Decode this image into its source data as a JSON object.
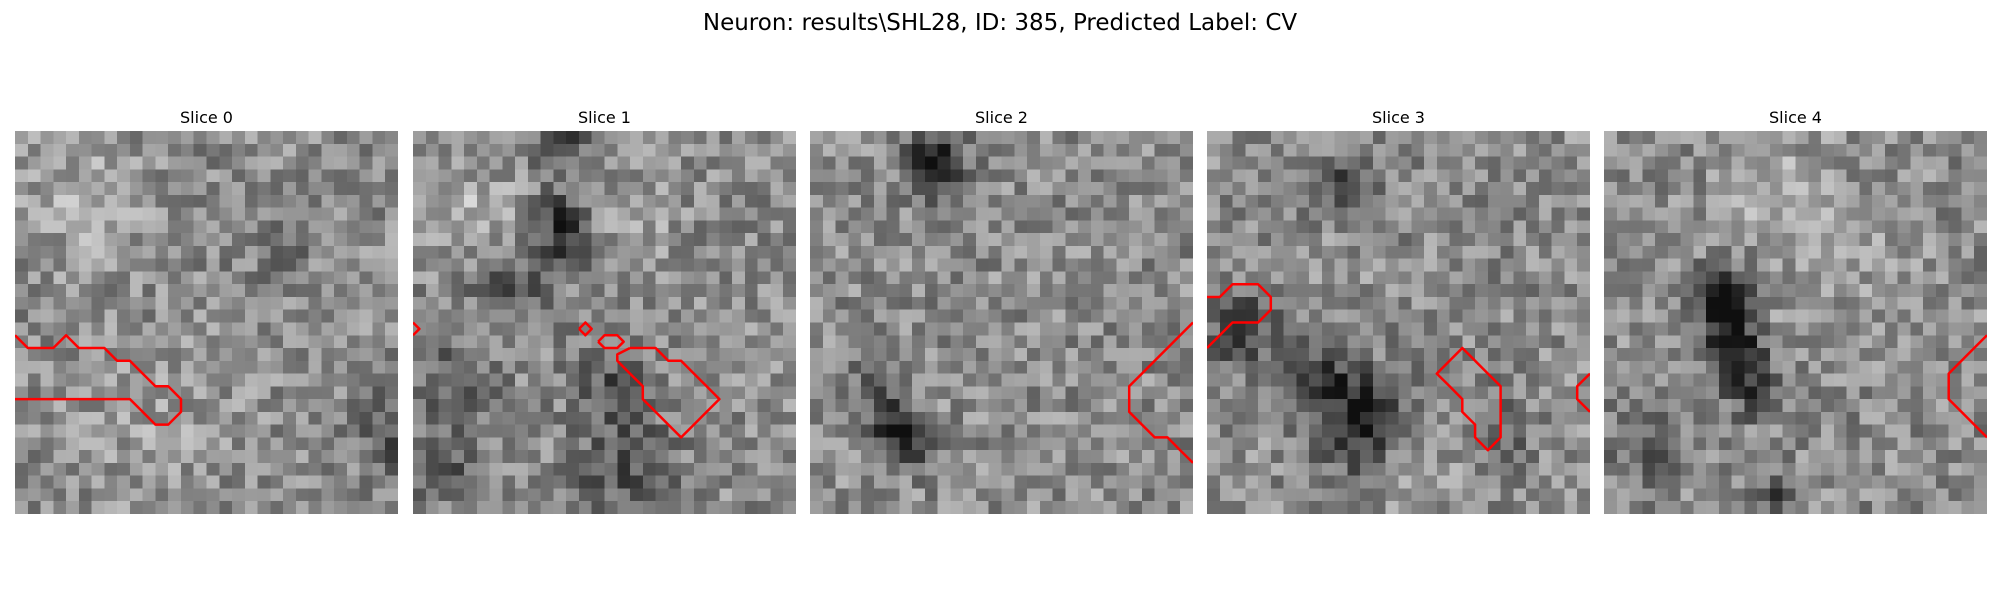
{
  "figure": {
    "title": "Neuron: results\\SHL28, ID: 385, Predicted Label: CV"
  },
  "panels": [
    {
      "title": "Slice 0",
      "image": "grayscale-microscopy-slice",
      "contours": [
        [
          [
            0,
            16
          ],
          [
            1,
            17
          ],
          [
            3,
            17
          ],
          [
            4,
            16
          ],
          [
            5,
            17
          ],
          [
            7,
            17
          ],
          [
            8,
            18
          ],
          [
            9,
            18
          ],
          [
            10,
            19
          ],
          [
            11,
            20
          ],
          [
            12,
            20
          ],
          [
            13,
            21
          ],
          [
            13,
            22
          ],
          [
            12,
            23
          ],
          [
            11,
            23
          ],
          [
            10,
            22
          ],
          [
            9,
            21
          ],
          [
            0,
            21
          ]
        ]
      ]
    },
    {
      "title": "Slice 1",
      "image": "grayscale-microscopy-slice",
      "contours": [
        [
          [
            0,
            15
          ],
          [
            0.5,
            15.5
          ],
          [
            0,
            16
          ]
        ],
        [
          [
            13,
            15.5
          ],
          [
            13.5,
            15
          ],
          [
            14,
            15.5
          ],
          [
            13.5,
            16
          ],
          [
            13,
            15.5
          ]
        ],
        [
          [
            14.5,
            16.5
          ],
          [
            15,
            16
          ],
          [
            16,
            16
          ],
          [
            16.5,
            16.5
          ],
          [
            16,
            17
          ],
          [
            15,
            17
          ],
          [
            14.5,
            16.5
          ]
        ],
        [
          [
            17,
            17
          ],
          [
            19,
            17
          ],
          [
            20,
            18
          ],
          [
            21,
            18
          ],
          [
            22,
            19
          ],
          [
            23,
            20
          ],
          [
            24,
            21
          ],
          [
            23,
            22
          ],
          [
            22,
            23
          ],
          [
            21,
            24
          ],
          [
            20,
            23
          ],
          [
            19,
            22
          ],
          [
            18,
            21
          ],
          [
            18,
            20
          ],
          [
            17,
            19
          ],
          [
            16,
            18
          ],
          [
            16,
            17.5
          ],
          [
            17,
            17
          ]
        ]
      ]
    },
    {
      "title": "Slice 2",
      "image": "grayscale-microscopy-slice",
      "contours": [
        [
          [
            30,
            15
          ],
          [
            29,
            16
          ],
          [
            28,
            17
          ],
          [
            27,
            18
          ],
          [
            26,
            19
          ],
          [
            25,
            20
          ],
          [
            25,
            22
          ],
          [
            26,
            23
          ],
          [
            27,
            24
          ],
          [
            28,
            24
          ],
          [
            29,
            25
          ],
          [
            30,
            26
          ]
        ]
      ]
    },
    {
      "title": "Slice 3",
      "image": "grayscale-microscopy-slice",
      "contours": [
        [
          [
            0,
            13
          ],
          [
            1,
            13
          ],
          [
            2,
            12
          ],
          [
            4,
            12
          ],
          [
            5,
            13
          ],
          [
            5,
            14
          ],
          [
            4,
            15
          ],
          [
            2,
            15
          ],
          [
            1,
            16
          ],
          [
            0,
            17
          ]
        ],
        [
          [
            19,
            18
          ],
          [
            20,
            17
          ],
          [
            21,
            18
          ],
          [
            22,
            19
          ],
          [
            23,
            20
          ],
          [
            23,
            24
          ],
          [
            22,
            25
          ],
          [
            21,
            24
          ],
          [
            21,
            23
          ],
          [
            20,
            22
          ],
          [
            20,
            21
          ],
          [
            19,
            20
          ],
          [
            18,
            19
          ],
          [
            19,
            18
          ]
        ],
        [
          [
            30,
            19
          ],
          [
            29,
            20
          ],
          [
            29,
            21
          ],
          [
            30,
            22
          ]
        ]
      ]
    },
    {
      "title": "Slice 4",
      "image": "grayscale-microscopy-slice",
      "contours": [
        [
          [
            30,
            16
          ],
          [
            29,
            17
          ],
          [
            28,
            18
          ],
          [
            27,
            19
          ],
          [
            27,
            21
          ],
          [
            28,
            22
          ],
          [
            29,
            23
          ],
          [
            30,
            24
          ]
        ]
      ]
    }
  ],
  "colors": {
    "contour": "#ff0000",
    "background": "#ffffff"
  }
}
